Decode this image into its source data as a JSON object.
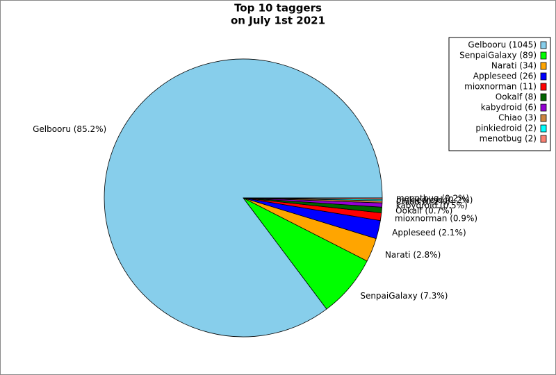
{
  "chart_data": {
    "type": "pie",
    "title_lines": [
      "Top 10 taggers",
      "on July 1st 2021"
    ],
    "categories": [
      "Gelbooru",
      "SenpaiGalaxy",
      "Narati",
      "Appleseed",
      "mioxnorman",
      "Ookalf",
      "kabydroid",
      "Chiao",
      "pinkiedroid",
      "menotbug"
    ],
    "values": [
      1045,
      89,
      34,
      26,
      11,
      8,
      6,
      3,
      2,
      2
    ],
    "value_labels": [
      "Gelbooru (85.2%)",
      "SenpaiGalaxy (7.3%)",
      "Narati (2.8%)",
      "Appleseed (2.1%)",
      "mioxnorman (0.9%)",
      "Ookalf (0.7%)",
      "kabydroid (0.5%)",
      "Chiao (0.2%)",
      "pinkiedroid (0.2%)",
      "menotbug (0.2%)"
    ],
    "legend_labels": [
      "Gelbooru (1045)",
      "SenpaiGalaxy (89)",
      "Narati (34)",
      "Appleseed (26)",
      "mioxnorman (11)",
      "Ookalf (8)",
      "kabydroid (6)",
      "Chiao (3)",
      "pinkiedroid (2)",
      "menotbug (2)"
    ],
    "colors": [
      "#87ceeb",
      "#00ff00",
      "#ffa500",
      "#0000ff",
      "#ff0000",
      "#006400",
      "#9400d3",
      "#cd853f",
      "#00ffff",
      "#fa8072"
    ],
    "legend": "upper right"
  }
}
